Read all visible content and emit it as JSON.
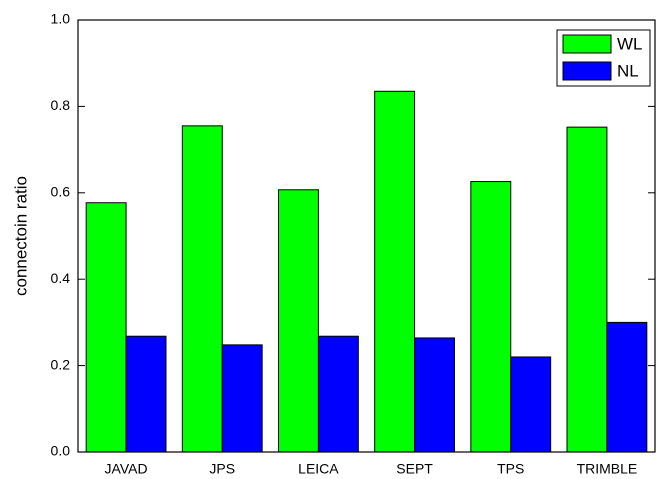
{
  "chart_data": {
    "type": "bar",
    "y_label": "connectoin ratio",
    "categories": [
      "JAVAD",
      "JPS",
      "LEICA",
      "SEPT",
      "TPS",
      "TRIMBLE"
    ],
    "series": [
      {
        "name": "WL",
        "color": "#00ff00",
        "values": [
          0.577,
          0.755,
          0.607,
          0.835,
          0.626,
          0.752
        ]
      },
      {
        "name": "NL",
        "color": "#0000ff",
        "values": [
          0.268,
          0.248,
          0.268,
          0.264,
          0.22,
          0.3
        ]
      }
    ],
    "ylim": [
      0,
      1
    ],
    "yticks": [
      {
        "value": 0,
        "label": "0.0"
      },
      0.2,
      0.4,
      0.6,
      0.8,
      {
        "value": 1,
        "label": "1.0"
      }
    ],
    "legend": "upper right"
  }
}
